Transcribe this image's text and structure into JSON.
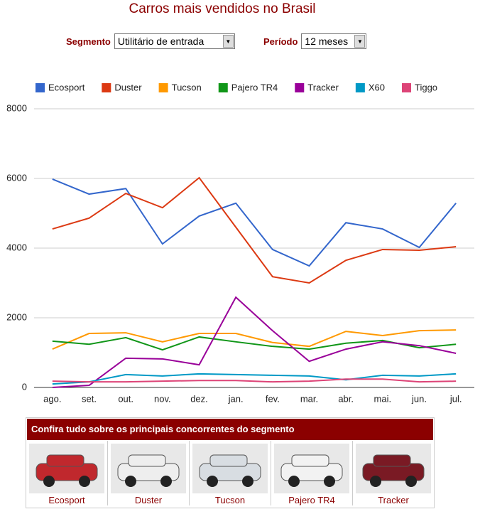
{
  "title": "Carros mais vendidos no Brasil",
  "controls": [
    {
      "label": "Segmento",
      "value": "Utilitário de entrada"
    },
    {
      "label": "Período",
      "value": "12 meses"
    }
  ],
  "chart_data": {
    "type": "line",
    "categories": [
      "ago.",
      "set.",
      "out.",
      "nov.",
      "dez.",
      "jan.",
      "fev.",
      "mar.",
      "abr.",
      "mai.",
      "jun.",
      "jul."
    ],
    "series": [
      {
        "name": "Ecosport",
        "color": "#3366cc",
        "values": [
          5980,
          5550,
          5710,
          4120,
          4920,
          5290,
          3960,
          3490,
          4730,
          4550,
          4020,
          5290
        ]
      },
      {
        "name": "Duster",
        "color": "#dc3912",
        "values": [
          4550,
          4860,
          5570,
          5160,
          6020,
          4600,
          3180,
          3000,
          3650,
          3960,
          3940,
          4040
        ]
      },
      {
        "name": "Tucson",
        "color": "#ff9900",
        "values": [
          1100,
          1550,
          1570,
          1310,
          1550,
          1550,
          1290,
          1180,
          1610,
          1490,
          1630,
          1650
        ]
      },
      {
        "name": "Pajero TR4",
        "color": "#109618",
        "values": [
          1330,
          1240,
          1430,
          1080,
          1450,
          1310,
          1180,
          1100,
          1270,
          1350,
          1140,
          1240
        ]
      },
      {
        "name": "Tracker",
        "color": "#990099",
        "values": [
          0,
          60,
          840,
          820,
          650,
          2590,
          1630,
          750,
          1100,
          1310,
          1200,
          980
        ]
      },
      {
        "name": "X60",
        "color": "#0099c6",
        "values": [
          100,
          160,
          370,
          330,
          390,
          370,
          350,
          330,
          220,
          350,
          330,
          390
        ]
      },
      {
        "name": "Tiggo",
        "color": "#dd4477",
        "values": [
          180,
          160,
          160,
          180,
          200,
          200,
          160,
          180,
          240,
          240,
          160,
          180
        ]
      }
    ],
    "ylim": [
      0,
      8000
    ],
    "yticks": [
      0,
      2000,
      4000,
      6000,
      8000
    ],
    "grid": true,
    "legend": "top"
  },
  "panel": {
    "title": "Confira tudo sobre os principais concorrentes do segmento",
    "items": [
      "Ecosport",
      "Duster",
      "Tucson",
      "Pajero TR4",
      "Tracker"
    ]
  }
}
